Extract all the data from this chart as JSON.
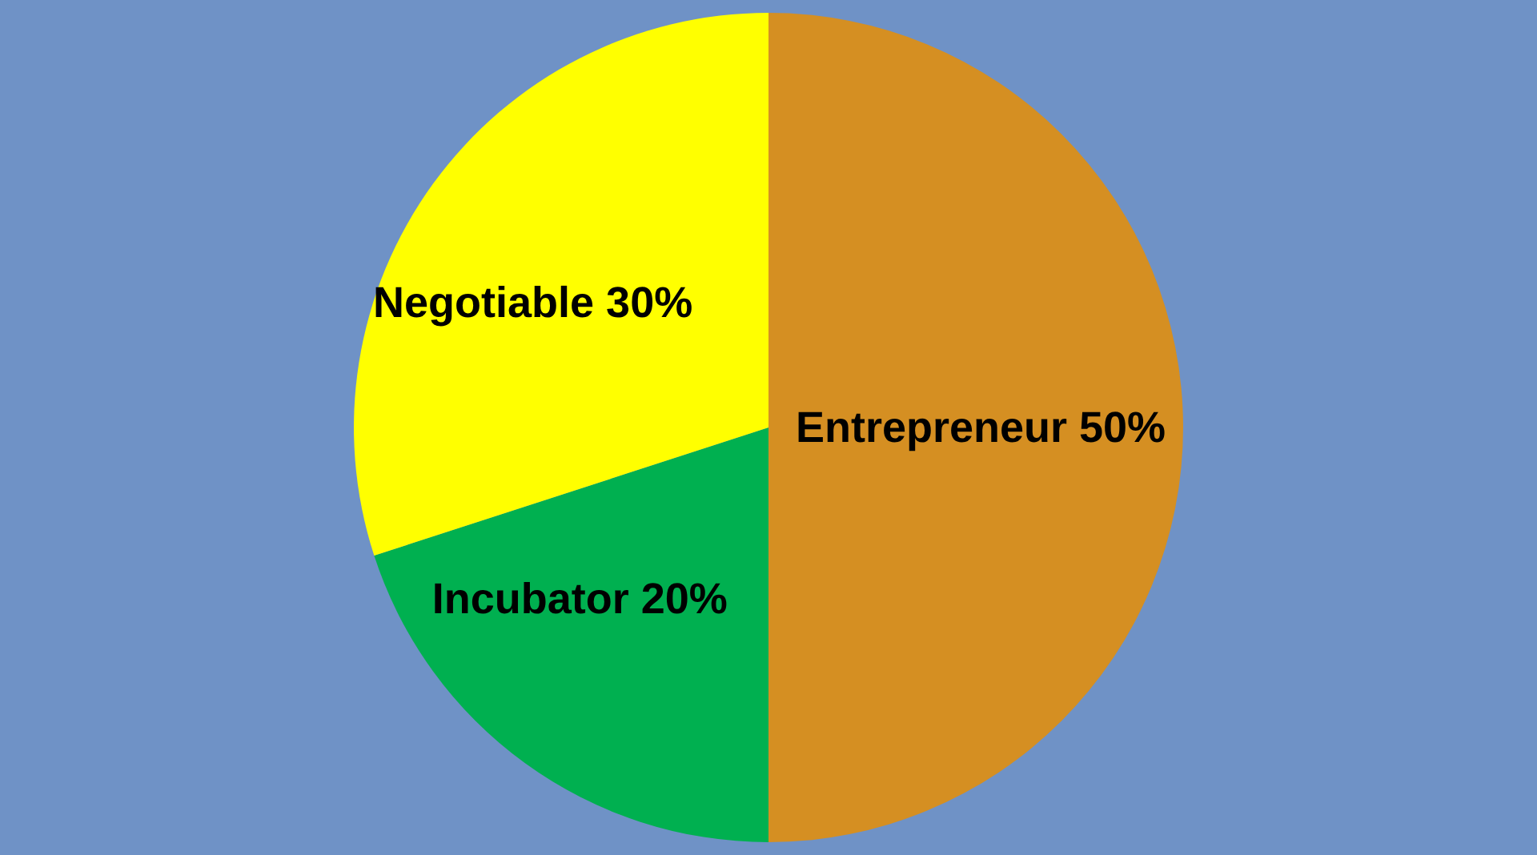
{
  "chart_data": {
    "type": "pie",
    "categories": [
      "Entrepreneur",
      "Incubator",
      "Negotiable"
    ],
    "values": [
      50,
      20,
      30
    ],
    "colors": [
      "#d58f22",
      "#00b050",
      "#ffff00"
    ],
    "value_labels": [
      "50%",
      "20%",
      "30%"
    ],
    "legend": false
  }
}
